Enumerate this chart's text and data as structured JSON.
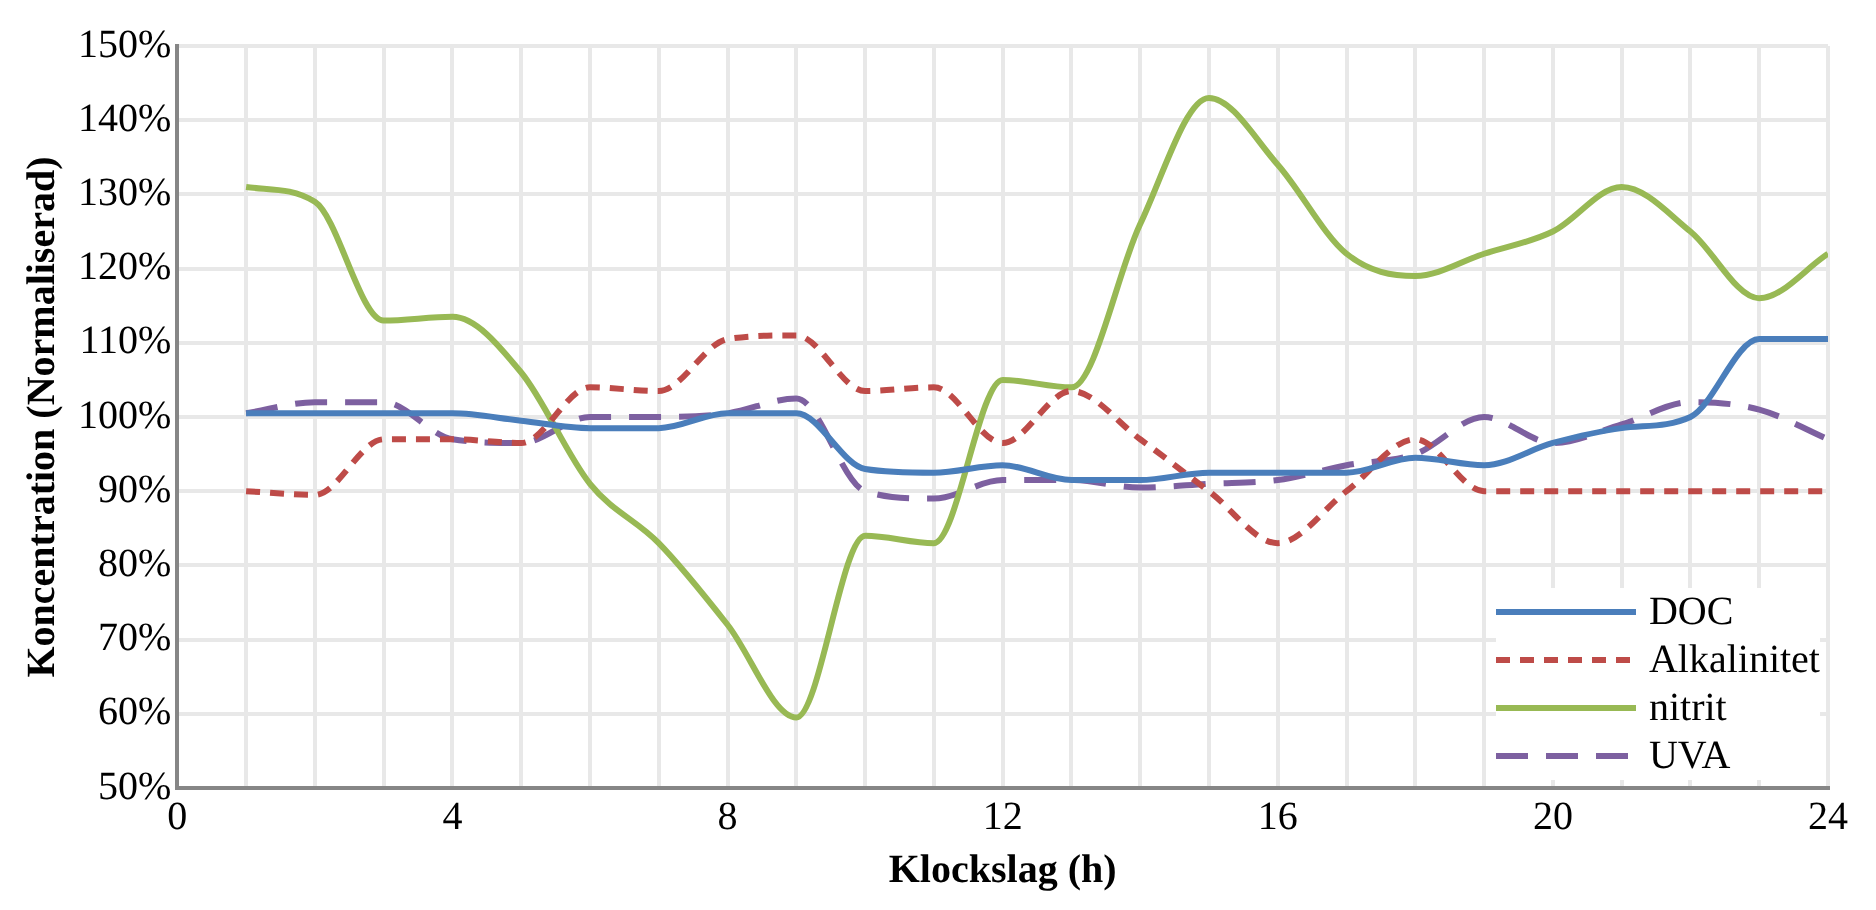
{
  "chart_data": {
    "type": "line",
    "xlabel": "Klockslag (h)",
    "ylabel": "Koncentration (Normaliserad)",
    "x": [
      1,
      2,
      3,
      4,
      5,
      6,
      7,
      8,
      9,
      10,
      11,
      12,
      13,
      14,
      15,
      16,
      17,
      18,
      19,
      20,
      21,
      22,
      23,
      24
    ],
    "series": [
      {
        "name": "DOC",
        "color": "#4a7ebb",
        "line_style": "solid",
        "values": [
          100.5,
          100.5,
          100.5,
          100.5,
          99.5,
          98.5,
          98.5,
          100.5,
          100.5,
          93,
          92.5,
          93.5,
          91.5,
          91.5,
          92.5,
          92.5,
          92.5,
          94.5,
          93.5,
          96.5,
          98.5,
          100,
          110.5,
          110.5
        ]
      },
      {
        "name": "Alkalinitet",
        "color": "#be4b48",
        "line_style": "dashed",
        "values": [
          90,
          89.5,
          97,
          97,
          96.5,
          104,
          103.5,
          110.5,
          111,
          103.5,
          104,
          96.5,
          103.5,
          97,
          90,
          83,
          90,
          97,
          90,
          90,
          90,
          90,
          90,
          90
        ]
      },
      {
        "name": "nitrit",
        "color": "#98b954",
        "line_style": "solid",
        "values": [
          131,
          129,
          113,
          113.5,
          106,
          91,
          83,
          72,
          59.5,
          84,
          83,
          105,
          104,
          126,
          143,
          134,
          122,
          119,
          122,
          125,
          131,
          125,
          116,
          122
        ]
      },
      {
        "name": "UVA",
        "color": "#7d60a0",
        "line_style": "dashed",
        "values": [
          100.5,
          102,
          102,
          97,
          96.5,
          100,
          100,
          100.5,
          102.5,
          90,
          89,
          91.5,
          91.5,
          90.5,
          91,
          91.5,
          93.5,
          95,
          100,
          96.5,
          99,
          102,
          101,
          97
        ]
      }
    ],
    "xlim": [
      0,
      24
    ],
    "xticks": [
      0,
      {
        "value": 1,
        "label": null
      },
      {
        "value": 2,
        "label": null
      },
      {
        "value": 3,
        "label": null
      },
      4,
      {
        "value": 5,
        "label": null
      },
      {
        "value": 6,
        "label": null
      },
      {
        "value": 7,
        "label": null
      },
      8,
      {
        "value": 9,
        "label": null
      },
      {
        "value": 10,
        "label": null
      },
      {
        "value": 11,
        "label": null
      },
      12,
      {
        "value": 13,
        "label": null
      },
      {
        "value": 14,
        "label": null
      },
      {
        "value": 15,
        "label": null
      },
      16,
      {
        "value": 17,
        "label": null
      },
      {
        "value": 18,
        "label": null
      },
      {
        "value": 19,
        "label": null
      },
      20,
      {
        "value": 21,
        "label": null
      },
      {
        "value": 22,
        "label": null
      },
      {
        "value": 23,
        "label": null
      },
      24
    ],
    "ylim": [
      50,
      150
    ],
    "yticks": [
      {
        "value": 50,
        "label": "50%"
      },
      {
        "value": 60,
        "label": "60%"
      },
      {
        "value": 70,
        "label": "70%"
      },
      {
        "value": 80,
        "label": "80%"
      },
      {
        "value": 90,
        "label": "90%"
      },
      {
        "value": 100,
        "label": "100%"
      },
      {
        "value": 110,
        "label": "110%"
      },
      {
        "value": 120,
        "label": "120%"
      },
      {
        "value": 130,
        "label": "130%"
      },
      {
        "value": 140,
        "label": "140%"
      },
      {
        "value": 150,
        "label": "150%"
      }
    ],
    "grid": true,
    "legend": "bottom right",
    "marker": "none"
  }
}
